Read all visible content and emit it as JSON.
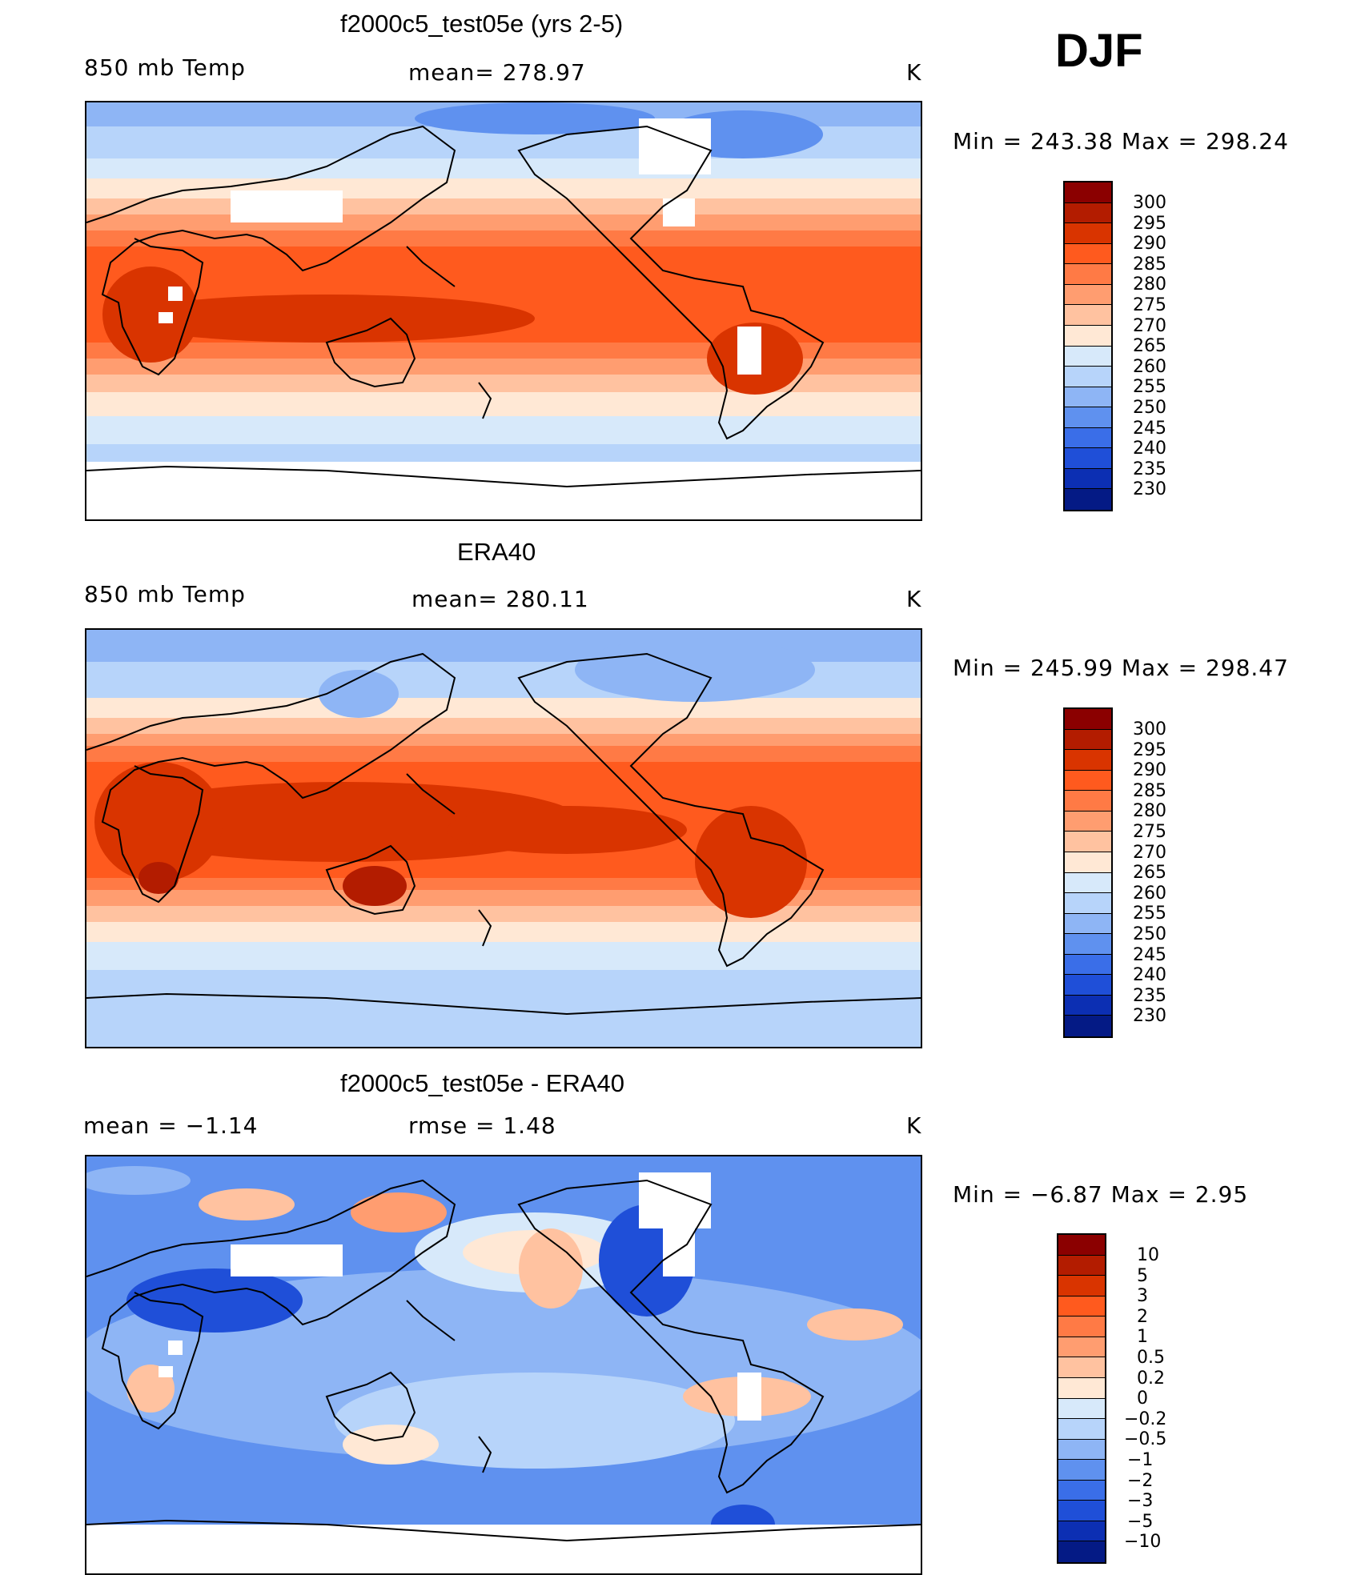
{
  "season": "DJF",
  "units": "K",
  "panels": [
    {
      "title": "f2000c5_test05e (yrs 2-5)",
      "left_label": "850 mb Temp",
      "center_label": "mean= 278.97",
      "right_label": "K",
      "minmax": "Min  =  243.38  Max  =  298.24",
      "colorbar_labels": [
        "300",
        "295",
        "290",
        "285",
        "280",
        "275",
        "270",
        "265",
        "260",
        "255",
        "250",
        "245",
        "240",
        "235",
        "230"
      ]
    },
    {
      "title": "ERA40",
      "left_label": "850 mb Temp",
      "center_label": "mean= 280.11",
      "right_label": "K",
      "minmax": "Min  =  245.99  Max  =  298.47",
      "colorbar_labels": [
        "300",
        "295",
        "290",
        "285",
        "280",
        "275",
        "270",
        "265",
        "260",
        "255",
        "250",
        "245",
        "240",
        "235",
        "230"
      ]
    },
    {
      "title": "f2000c5_test05e - ERA40",
      "left_label": "mean =   −1.14",
      "center_label": "rmse =    1.48",
      "right_label": "K",
      "minmax": "Min  =   −6.87  Max  =     2.95",
      "colorbar_labels": [
        "10",
        "5",
        "3",
        "2",
        "1",
        "0.5",
        "0.2",
        "0",
        "−0.2",
        "−0.5",
        "−1",
        "−2",
        "−3",
        "−5",
        "−10"
      ]
    }
  ],
  "colors": {
    "temp_scale": [
      "#8b0000",
      "#b31c00",
      "#d93400",
      "#ff5a1e",
      "#ff7a45",
      "#ff9d70",
      "#ffc2a0",
      "#ffe8d5",
      "#d7e9fa",
      "#b7d4fa",
      "#8eb5f5",
      "#5f91ef",
      "#3a6ee8",
      "#1f4fd8",
      "#0c2fb3",
      "#041a85"
    ],
    "diff_scale": [
      "#8b0000",
      "#b31c00",
      "#d93400",
      "#ff5a1e",
      "#ff7a45",
      "#ff9d70",
      "#ffc2a0",
      "#ffe8d5",
      "#d7e9fa",
      "#b7d4fa",
      "#8eb5f5",
      "#5f91ef",
      "#3a6ee8",
      "#1f4fd8",
      "#0c2fb3",
      "#041a85"
    ]
  }
}
